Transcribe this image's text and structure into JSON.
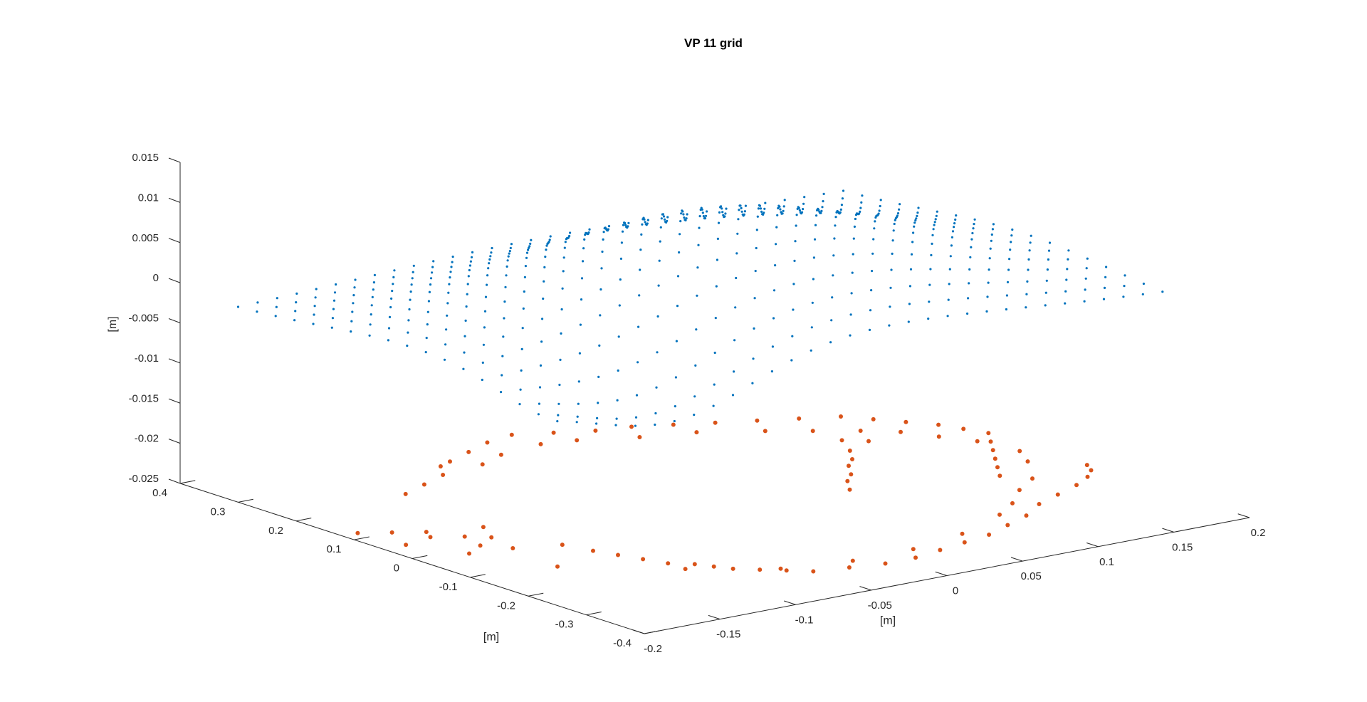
{
  "chart_data": {
    "type": "scatter",
    "title": "VP 11 grid",
    "axes": {
      "x": {
        "label": "[m]",
        "range": [
          -0.2,
          0.2
        ],
        "ticks": [
          "-0.2",
          "-0.15",
          "-0.1",
          "-0.05",
          "0",
          "0.05",
          "0.1",
          "0.15",
          "0.2"
        ],
        "tick_values": [
          -0.2,
          -0.15,
          -0.1,
          -0.05,
          0,
          0.05,
          0.1,
          0.15,
          0.2
        ]
      },
      "y": {
        "label": "[m]",
        "range": [
          -0.4,
          0.4
        ],
        "ticks": [
          "-0.4",
          "-0.3",
          "-0.2",
          "-0.1",
          "0",
          "0.1",
          "0.2",
          "0.3",
          "0.4"
        ],
        "tick_values": [
          -0.4,
          -0.3,
          -0.2,
          -0.1,
          0,
          0.1,
          0.2,
          0.3,
          0.4
        ]
      },
      "z": {
        "label": "[m]",
        "range": [
          -0.025,
          0.015
        ],
        "ticks": [
          "-0.025",
          "-0.02",
          "-0.015",
          "-0.01",
          "-0.005",
          "0",
          "0.005",
          "0.01",
          "0.015"
        ],
        "tick_values": [
          -0.025,
          -0.02,
          -0.015,
          -0.01,
          -0.005,
          0,
          0.005,
          0.01,
          0.015
        ]
      }
    },
    "grid": false,
    "series": [
      {
        "marker_color": "#0072BD",
        "description_of_shape": "dense point grid forming a dome-shaped surface, peak about 0.01 near the center, edges near 0 to -0.007",
        "grid_x_range": [
          -0.2,
          0.2
        ],
        "grid_y_range": [
          -0.25,
          0.3
        ],
        "grid_nx": 32,
        "grid_ny": 18,
        "peak_z": 0.0105,
        "edge_z": -0.001
      },
      {
        "marker_color": "#D95319",
        "z": -0.025,
        "points": [
          [
            -0.19,
            0.12
          ],
          [
            -0.185,
            0.05
          ],
          [
            -0.175,
            0.1
          ],
          [
            -0.17,
            -0.02
          ],
          [
            -0.165,
            0.06
          ],
          [
            -0.16,
            0.08
          ],
          [
            -0.155,
            0.0
          ],
          [
            -0.15,
            0.04
          ],
          [
            -0.145,
            -0.03
          ],
          [
            -0.14,
            0.02
          ],
          [
            -0.13,
            0.06
          ],
          [
            -0.12,
            -0.05
          ],
          [
            -0.115,
            -0.09
          ],
          [
            -0.11,
            -0.12
          ],
          [
            -0.105,
            -0.15
          ],
          [
            -0.1,
            -0.18
          ],
          [
            -0.09,
            -0.2
          ],
          [
            -0.085,
            -0.22
          ],
          [
            -0.08,
            -0.24
          ],
          [
            -0.07,
            -0.26
          ],
          [
            -0.06,
            -0.28
          ],
          [
            -0.05,
            -0.3
          ],
          [
            -0.03,
            -0.31
          ],
          [
            -0.01,
            -0.32
          ],
          [
            0.01,
            -0.32
          ],
          [
            0.03,
            -0.31
          ],
          [
            0.05,
            -0.3
          ],
          [
            0.07,
            -0.29
          ],
          [
            0.09,
            -0.27
          ],
          [
            0.11,
            -0.25
          ],
          [
            0.13,
            -0.22
          ],
          [
            0.15,
            -0.2
          ],
          [
            0.17,
            -0.18
          ],
          [
            0.185,
            -0.16
          ],
          [
            0.195,
            -0.14
          ],
          [
            0.2,
            -0.12
          ],
          [
            -0.06,
            0.3
          ],
          [
            -0.04,
            0.32
          ],
          [
            -0.02,
            0.34
          ],
          [
            0.0,
            0.35
          ],
          [
            0.02,
            0.33
          ],
          [
            0.04,
            0.31
          ],
          [
            0.06,
            0.3
          ],
          [
            0.08,
            0.28
          ],
          [
            0.1,
            0.26
          ],
          [
            0.12,
            0.24
          ],
          [
            0.14,
            0.22
          ],
          [
            0.16,
            0.2
          ],
          [
            0.17,
            0.17
          ],
          [
            0.18,
            0.14
          ],
          [
            0.19,
            0.11
          ],
          [
            0.195,
            0.08
          ],
          [
            0.2,
            0.05
          ],
          [
            0.19,
            0.02
          ],
          [
            0.18,
            -0.01
          ],
          [
            0.17,
            -0.04
          ],
          [
            0.16,
            -0.07
          ],
          [
            0.15,
            -0.1
          ],
          [
            0.14,
            0.1
          ],
          [
            0.13,
            0.12
          ],
          [
            0.12,
            0.08
          ],
          [
            0.11,
            0.05
          ],
          [
            0.1,
            0.03
          ],
          [
            0.09,
            0.0
          ],
          [
            0.08,
            -0.02
          ],
          [
            0.07,
            -0.05
          ],
          [
            -0.08,
            0.26
          ],
          [
            -0.1,
            0.24
          ],
          [
            -0.12,
            0.22
          ],
          [
            -0.07,
            0.29
          ],
          [
            -0.05,
            0.27
          ],
          [
            -0.03,
            0.29
          ],
          [
            0.0,
            0.3
          ],
          [
            0.02,
            0.29
          ],
          [
            0.05,
            0.26
          ],
          [
            0.08,
            0.24
          ],
          [
            0.11,
            0.2
          ],
          [
            0.13,
            0.17
          ],
          [
            0.15,
            0.14
          ],
          [
            0.165,
            0.11
          ],
          [
            0.175,
            0.07
          ],
          [
            0.185,
            0.03
          ],
          [
            0.19,
            -0.03
          ],
          [
            0.18,
            -0.07
          ],
          [
            0.16,
            -0.13
          ],
          [
            0.14,
            -0.16
          ],
          [
            0.12,
            -0.2
          ],
          [
            0.1,
            -0.23
          ],
          [
            0.06,
            -0.27
          ],
          [
            0.02,
            -0.29
          ],
          [
            -0.02,
            -0.29
          ],
          [
            -0.06,
            -0.27
          ],
          [
            -0.1,
            -0.21
          ],
          [
            -0.15,
            -0.12
          ]
        ]
      }
    ]
  }
}
